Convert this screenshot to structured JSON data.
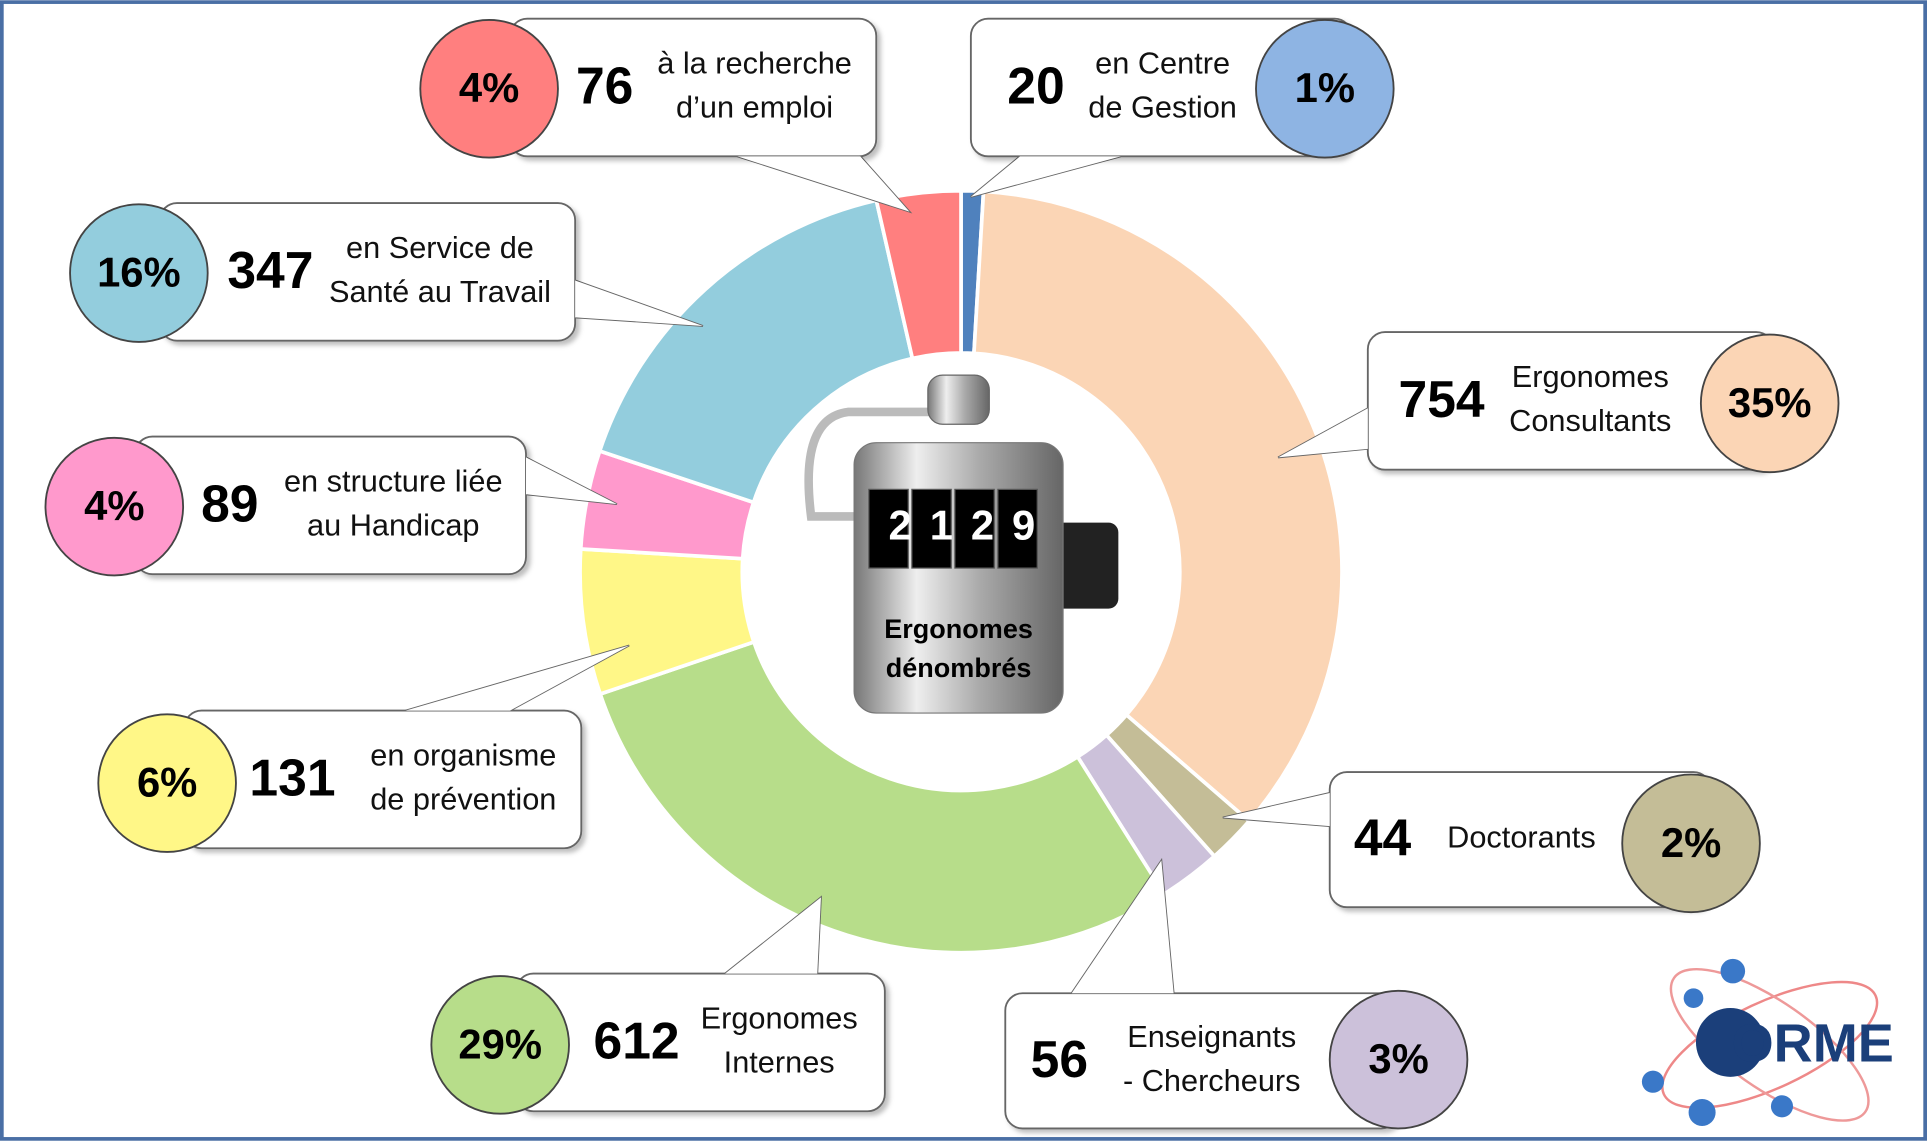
{
  "chart_data": {
    "type": "donut",
    "categories": [
      [
        "en Centre",
        "de Gestion"
      ],
      [
        "Ergonomes",
        "Consultants"
      ],
      [
        "Doctorants"
      ],
      [
        "Enseignants",
        "- Chercheurs"
      ],
      [
        "Ergonomes",
        "Internes"
      ],
      [
        "en organisme",
        "de prévention"
      ],
      [
        "en structure liée",
        "au Handicap"
      ],
      [
        "en Service de",
        "Santé au Travail"
      ],
      [
        "à la recherche",
        "d’un emploi"
      ]
    ],
    "values": [
      20,
      754,
      44,
      56,
      612,
      131,
      89,
      347,
      76
    ],
    "percentages": [
      "1%",
      "35%",
      "2%",
      "3%",
      "29%",
      "6%",
      "4%",
      "16%",
      "4%"
    ],
    "colors": [
      "#4f81bd",
      "#fbd5b5",
      "#c4bd97",
      "#ccc1da",
      "#b7dd8a",
      "#fff787",
      "#ff99cc",
      "#93cddd",
      "#ff7f7f"
    ],
    "bubble_colors": [
      "#8eb4e3",
      "#fbd5b5",
      "#c4bd97",
      "#ccc1da",
      "#b7dd8a",
      "#fff787",
      "#ff99cc",
      "#93cddd",
      "#ff7f7f"
    ],
    "total": 2129,
    "center_label": [
      "Ergonomes",
      "dénombrés"
    ],
    "logo": "ORME"
  }
}
